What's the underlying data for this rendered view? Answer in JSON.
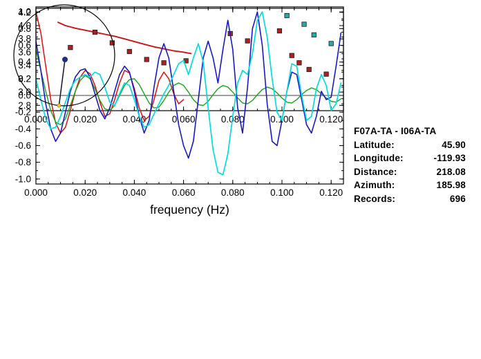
{
  "station_info": {
    "title": "F07A-TA - I06A-TA",
    "rows": [
      {
        "label": "Latitude:",
        "value": "45.90"
      },
      {
        "label": "Longitude:",
        "value": "-119.93"
      },
      {
        "label": "Distance:",
        "value": "218.08"
      },
      {
        "label": "Azimuth:",
        "value": "185.98"
      },
      {
        "label": "Records:",
        "value": "696"
      }
    ]
  },
  "map": {
    "azimuth_deg": 185.98,
    "circle_color": "#000000",
    "path_color": "#101030",
    "station_dot_color": "#1b2f8a",
    "event_dot_color": "#e8c93a"
  },
  "chart_data": [
    {
      "id": "dispersion",
      "type": "scatter",
      "title": "",
      "xlabel": "",
      "ylabel": "",
      "xlim": [
        0,
        0.125
      ],
      "ylim": [
        2.72,
        4.26
      ],
      "grid": false,
      "legend": "none",
      "xminor": 0.005,
      "yminor": 0.1,
      "xticks": [
        0,
        0.02,
        0.04,
        0.06,
        0.08,
        0.1,
        0.12
      ],
      "xtick_labels": [
        "0.000",
        "0.020",
        "0.040",
        "0.060",
        "0.080",
        "0.100",
        "0.120"
      ],
      "yticks": [
        2.8,
        3.0,
        3.2,
        3.4,
        3.6,
        3.8,
        4.0,
        4.2
      ],
      "ytick_labels": [
        "2.8",
        "3.0",
        "3.2",
        "3.4",
        "3.6",
        "3.8",
        "4.0",
        "4.2"
      ],
      "series": [
        {
          "name": "reference-dispersion-curve",
          "mode": "line",
          "color": "#cc1414",
          "width": 1.9,
          "x": [
            0.009,
            0.012,
            0.016,
            0.02,
            0.024,
            0.028,
            0.032,
            0.036,
            0.04,
            0.044,
            0.048,
            0.052,
            0.056,
            0.06,
            0.063
          ],
          "y": [
            4.05,
            4.0,
            3.96,
            3.93,
            3.9,
            3.87,
            3.84,
            3.8,
            3.76,
            3.72,
            3.68,
            3.65,
            3.62,
            3.6,
            3.58
          ]
        },
        {
          "name": "dispersion-picks",
          "mode": "scatter",
          "marker": "square",
          "color": "#a82222",
          "x": [
            0.014,
            0.024,
            0.031,
            0.038,
            0.045,
            0.052,
            0.061,
            0.079,
            0.086,
            0.099,
            0.104,
            0.107,
            0.111,
            0.118
          ],
          "y": [
            3.67,
            3.9,
            3.74,
            3.61,
            3.49,
            3.44,
            3.47,
            3.88,
            3.77,
            3.92,
            3.55,
            3.44,
            3.34,
            3.27
          ]
        },
        {
          "name": "dispersion-picks-alt",
          "mode": "scatter",
          "marker": "square",
          "color": "#2aa8a8",
          "x": [
            0.102,
            0.109,
            0.113,
            0.12
          ],
          "y": [
            4.15,
            4.02,
            3.86,
            3.73
          ]
        }
      ]
    },
    {
      "id": "cross-spectra",
      "type": "line",
      "title": "",
      "xlabel": "frequency (Hz)",
      "ylabel": "",
      "xlim": [
        0,
        0.125
      ],
      "ylim": [
        -1.06,
        1.06
      ],
      "grid": false,
      "legend": "none",
      "hline": 0,
      "xminor": 0.005,
      "yminor": 0.1,
      "xticks": [
        0,
        0.02,
        0.04,
        0.06,
        0.08,
        0.1,
        0.12
      ],
      "xtick_labels": [
        "0.000",
        "0.020",
        "0.040",
        "0.060",
        "0.080",
        "0.100",
        "0.120"
      ],
      "yticks": [
        -1.0,
        -0.8,
        -0.6,
        -0.4,
        -0.2,
        0.0,
        0.2,
        0.4,
        0.6,
        0.8,
        1.0
      ],
      "ytick_labels": [
        "-1.0",
        "-0.8",
        "-0.6",
        "-0.4",
        "-0.2",
        "0.0",
        "0.2",
        "0.4",
        "0.6",
        "0.8",
        "1.0"
      ],
      "series": [
        {
          "name": "red-trace",
          "mode": "line",
          "color": "#dd0e0e",
          "width": 1.5,
          "x_start": 0,
          "x_step": 0.002,
          "y": [
            1.0,
            0.75,
            0.35,
            -0.05,
            -0.33,
            -0.45,
            -0.38,
            -0.18,
            0.05,
            0.22,
            0.3,
            0.26,
            0.12,
            -0.08,
            -0.25,
            -0.22,
            -0.05,
            0.15,
            0.3,
            0.27,
            0.08,
            -0.15,
            -0.3,
            -0.25,
            -0.05,
            0.18,
            0.28,
            0.2,
            0.02,
            -0.1,
            -0.05
          ]
        },
        {
          "name": "green-trace",
          "mode": "line",
          "color": "#16a616",
          "width": 1.4,
          "x_start": 0,
          "x_step": 0.002,
          "y": [
            0.55,
            0.3,
            0.05,
            -0.18,
            -0.32,
            -0.35,
            -0.28,
            -0.12,
            0.05,
            0.18,
            0.24,
            0.2,
            0.08,
            -0.06,
            -0.16,
            -0.18,
            -0.12,
            0.0,
            0.12,
            0.19,
            0.2,
            0.13,
            0.02,
            -0.09,
            -0.15,
            -0.14,
            -0.06,
            0.04,
            0.12,
            0.15,
            0.12,
            0.04,
            -0.05,
            -0.11,
            -0.12,
            -0.07,
            0.01,
            0.08,
            0.12,
            0.1,
            0.04,
            -0.03,
            -0.09,
            -0.1,
            -0.06,
            0.01,
            0.07,
            0.1,
            0.08,
            0.03,
            -0.03,
            -0.08,
            -0.09,
            -0.05,
            0.01,
            0.06,
            0.09,
            0.07,
            0.02,
            -0.03,
            -0.07,
            -0.08,
            -0.04
          ]
        },
        {
          "name": "blue-trace",
          "mode": "line",
          "color": "#1818c8",
          "width": 1.6,
          "x_start": 0,
          "x_step": 0.002,
          "y": [
            0.65,
            0.3,
            -0.1,
            -0.4,
            -0.55,
            -0.45,
            -0.2,
            0.05,
            0.22,
            0.3,
            0.32,
            0.22,
            0.02,
            -0.18,
            -0.28,
            -0.15,
            0.05,
            0.25,
            0.35,
            0.28,
            0.05,
            -0.25,
            -0.45,
            -0.3,
            0.1,
            0.45,
            0.62,
            0.45,
            0.05,
            -0.35,
            -0.6,
            -0.75,
            -0.55,
            -0.05,
            0.45,
            0.65,
            0.45,
            0.15,
            0.55,
            0.9,
            0.55,
            -0.15,
            -0.45,
            0.1,
            0.8,
            1.0,
            0.6,
            -0.1,
            -0.55,
            -0.6,
            -0.3,
            0.05,
            0.28,
            0.25,
            -0.05,
            -0.35,
            -0.45,
            -0.25,
            0.05,
            -0.05,
            -0.02,
            0.35,
            0.75
          ]
        },
        {
          "name": "cyan-trace",
          "mode": "line",
          "color": "#00dde0",
          "width": 1.7,
          "x_start": 0,
          "x_step": 0.002,
          "y": [
            0.2,
            -0.05,
            -0.28,
            -0.4,
            -0.38,
            -0.25,
            -0.08,
            0.08,
            0.18,
            0.22,
            0.25,
            0.22,
            0.28,
            0.25,
            0.1,
            -0.08,
            -0.12,
            0.02,
            0.15,
            0.12,
            -0.05,
            -0.25,
            -0.38,
            -0.35,
            -0.22,
            -0.1,
            0.02,
            0.12,
            0.25,
            0.38,
            0.42,
            0.25,
            0.45,
            0.62,
            0.4,
            -0.15,
            -0.65,
            -0.92,
            -0.95,
            -0.7,
            -0.25,
            0.15,
            0.3,
            0.25,
            0.5,
            0.9,
            1.0,
            0.7,
            0.2,
            -0.2,
            -0.3,
            0.05,
            0.38,
            0.35,
            0.0,
            -0.3,
            -0.25,
            0.08,
            0.25,
            0.12,
            -0.18,
            -0.1,
            0.15
          ]
        }
      ]
    }
  ]
}
